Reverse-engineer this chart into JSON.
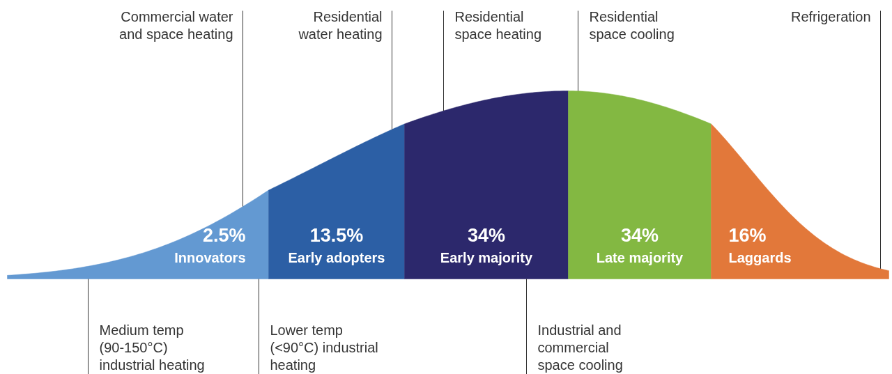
{
  "chart_data": {
    "type": "other",
    "categories": [
      "Innovators",
      "Early adopters",
      "Early majority",
      "Late majority",
      "Laggards"
    ],
    "values": [
      2.5,
      13.5,
      34,
      34,
      16
    ],
    "value_labels": [
      "2.5%",
      "13.5%",
      "34%",
      "34%",
      "16%"
    ],
    "colors": [
      "#6399d2",
      "#2c5fa5",
      "#2c286c",
      "#83b842",
      "#e2783a"
    ],
    "annotations": [
      "Commercial water\nand space heating",
      "Residential\nwater heating",
      "Residential\nspace heating",
      "Residential\nspace cooling",
      "Refrigeration",
      "Medium temp\n(90-150°C)\nindustrial heating",
      "Lower temp\n(<90°C) industrial\nheating",
      "Industrial and\ncommercial\nspace cooling"
    ]
  }
}
